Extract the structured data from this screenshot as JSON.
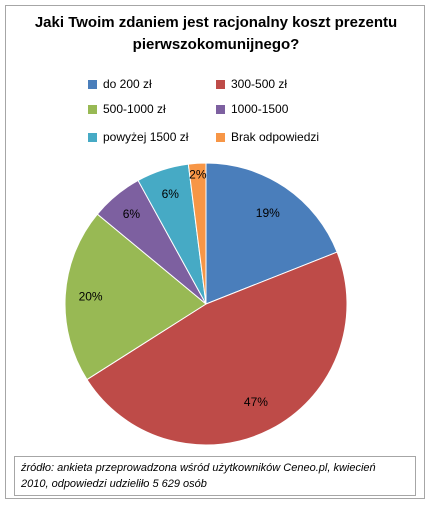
{
  "title_line1": "Jaki Twoim zdaniem jest racjonalny koszt prezentu",
  "title_line2": "pierwszokomunijnego?",
  "source_line1": "źródło:  ankieta  przeprowadzona  wśród  użytkowników  Ceneo.pl,  kwiecień",
  "source_line2": "2010, odpowiedzi  udzieliło 5 629 osób",
  "chart_data": {
    "type": "pie",
    "title": "Jaki Twoim zdaniem jest racjonalny koszt prezentu pierwszokomunijnego?",
    "legend_position": "top",
    "slices": [
      {
        "label": "do 200 zł",
        "value": 19,
        "display": "19%",
        "color": "#4a7ebb"
      },
      {
        "label": "300-500 zł",
        "value": 47,
        "display": "47%",
        "color": "#be4b48"
      },
      {
        "label": "500-1000 zł",
        "value": 20,
        "display": "20%",
        "color": "#98b954"
      },
      {
        "label": "1000-1500",
        "value": 6,
        "display": "6%",
        "color": "#7d60a0"
      },
      {
        "label": "powyżej 1500 zł",
        "value": 6,
        "display": "6%",
        "color": "#46aac5"
      },
      {
        "label": "Brak odpowiedzi",
        "value": 2,
        "display": "2%",
        "color": "#f79646"
      }
    ]
  }
}
